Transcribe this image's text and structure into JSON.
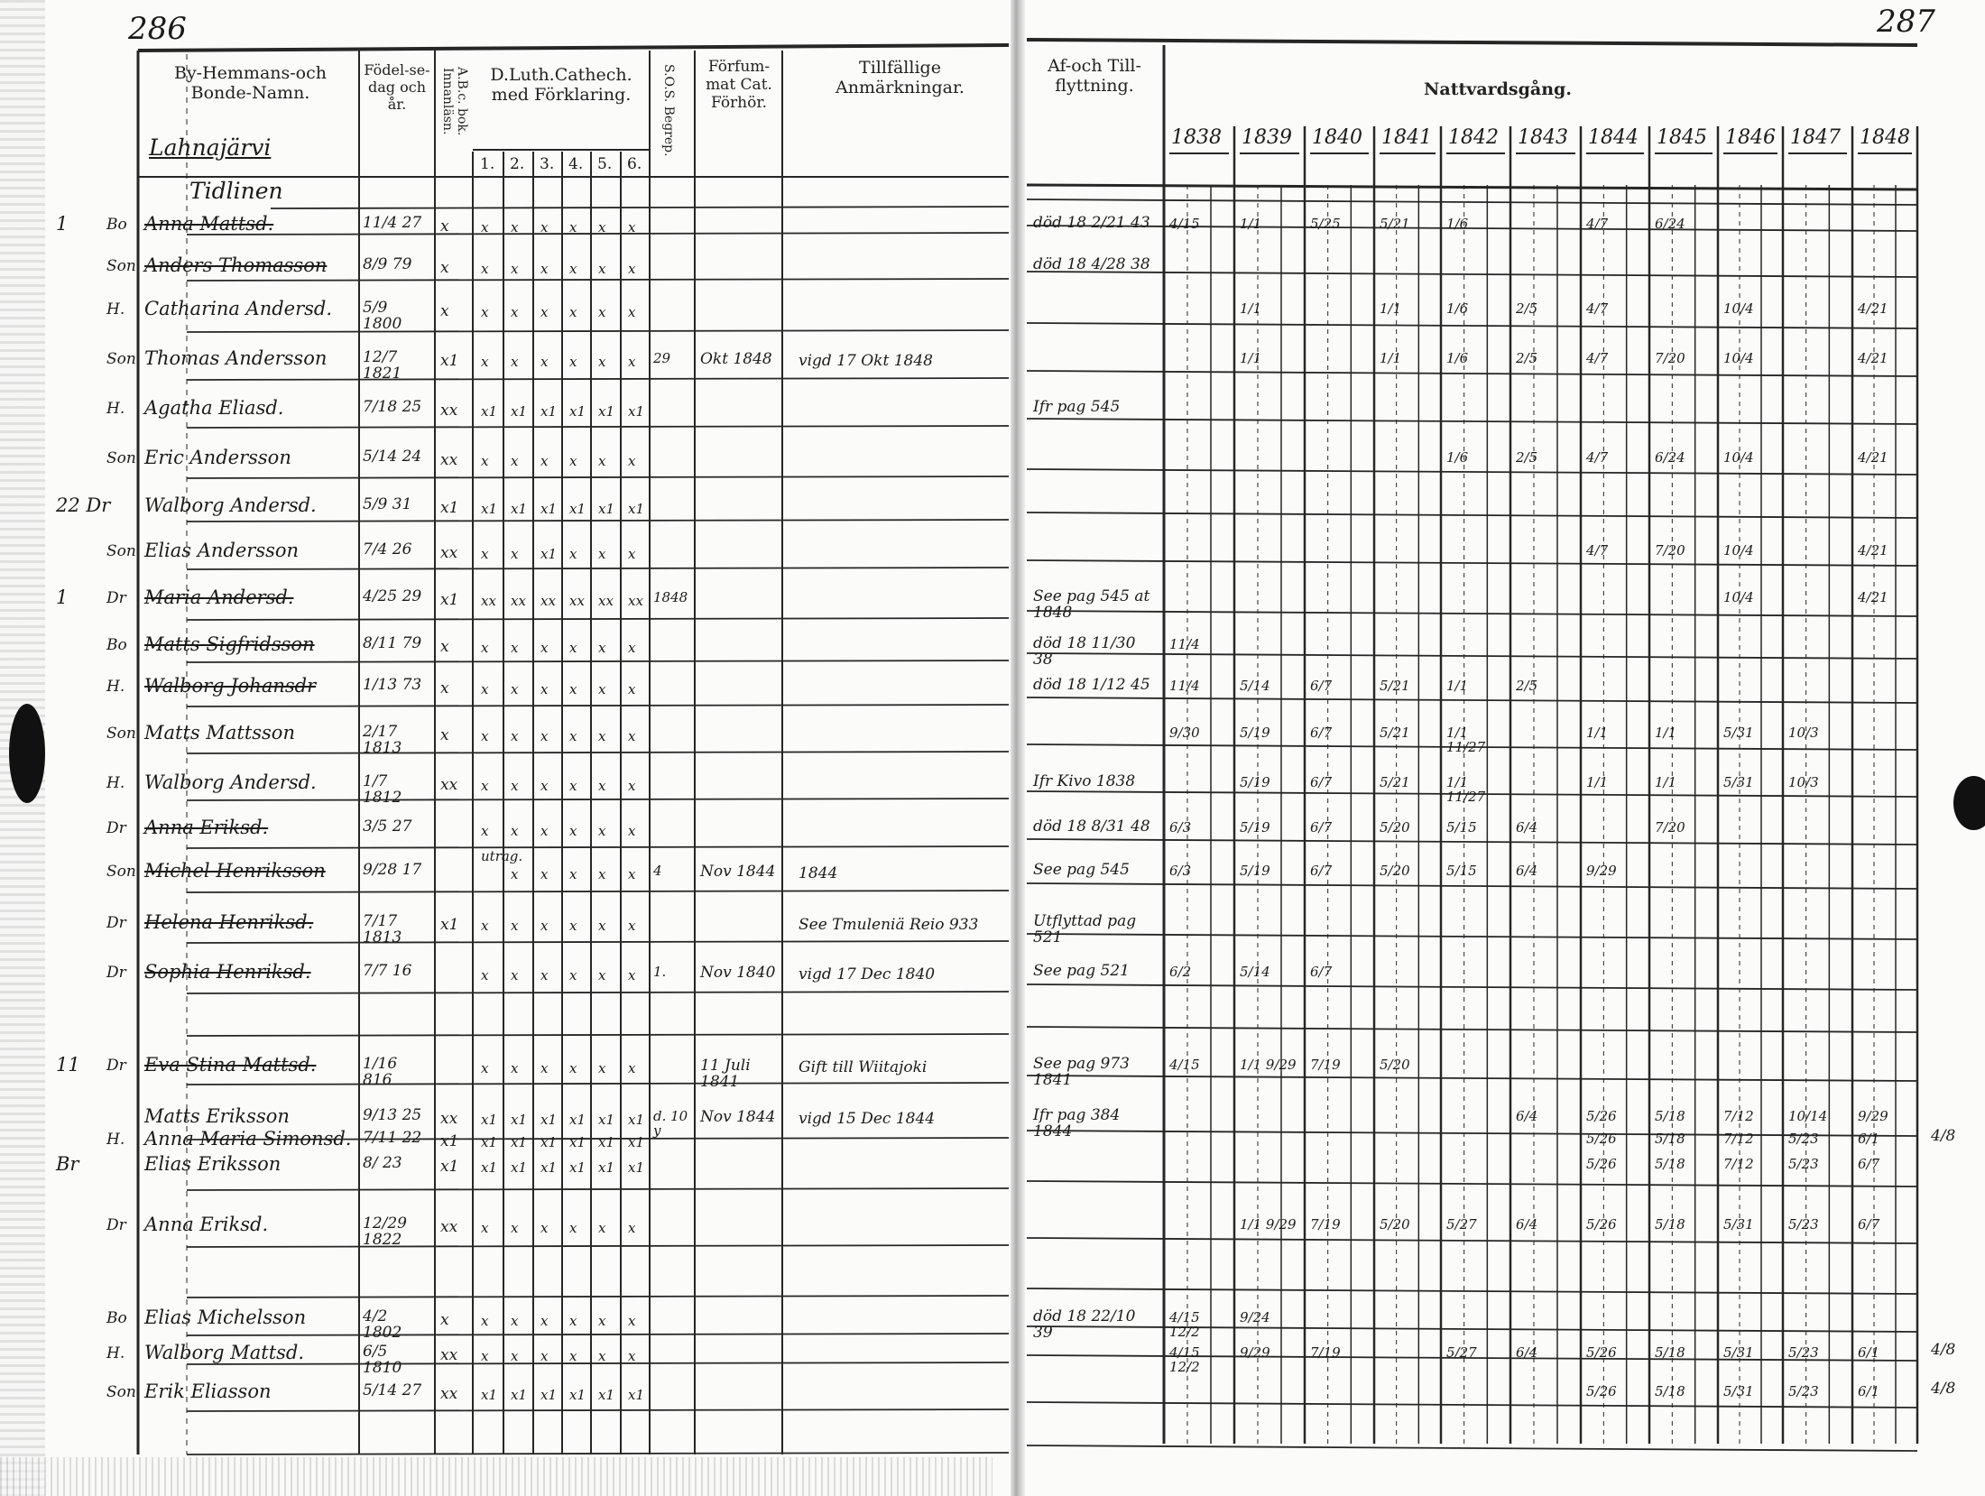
{
  "pages": {
    "left_number": "286",
    "right_number": "287"
  },
  "headers": {
    "name_col": "By-Hemmans-och Bonde-Namn.",
    "birth_col": "Födel-se-dag och år.",
    "abc_col": "A.B.c. bok. Innanläsn.",
    "catechism_col": "D.Luth.Cathech. med Förklaring.",
    "catechism_subcolumns": [
      "1.",
      "2.",
      "3.",
      "4.",
      "5.",
      "6."
    ],
    "sos_col": "S.O.S. Begrep.",
    "missed_col": "Förfum-mat Cat. Förhör.",
    "remarks_col": "Tillfällige Anmärkningar.",
    "moving_col": "Af-och Till-flyttning.",
    "communion_col": "Nattvardsgång.",
    "years": [
      "1838",
      "1839",
      "1840",
      "1841",
      "1842",
      "1843",
      "1844",
      "1845",
      "1846",
      "1847",
      "1848"
    ]
  },
  "village": "Lahnajärvi",
  "farm": "Tidlinen",
  "rows": [
    {
      "margin": "1",
      "rel": "Bo",
      "name": "Anna Mattsd.",
      "struck": true,
      "birth": "11/4 27",
      "abc": "x",
      "cat": [
        "x",
        "x",
        "x",
        "x",
        "x",
        "x"
      ],
      "sos": "",
      "missed": "",
      "remark": "",
      "move": "död 18 2/21 43",
      "communion": {
        "1838": "4/15",
        "1839": "1/1",
        "1840": "5/25",
        "1841": "5/21",
        "1842": "1/6",
        "1844": "4/7",
        "1845": "6/24"
      },
      "right": ""
    },
    {
      "margin": "",
      "rel": "Son",
      "name": "Anders Thomasson",
      "struck": true,
      "birth": "8/9 79",
      "abc": "x",
      "cat": [
        "x",
        "x",
        "x",
        "x",
        "x",
        "x"
      ],
      "sos": "",
      "missed": "",
      "remark": "",
      "move": "död 18 4/28 38",
      "communion": {},
      "right": ""
    },
    {
      "margin": "",
      "rel": "H.",
      "name": "Catharina Andersd.",
      "struck": false,
      "birth": "5/9 1800",
      "abc": "x",
      "cat": [
        "x",
        "x",
        "x",
        "x",
        "x",
        "x"
      ],
      "sos": "",
      "missed": "",
      "remark": "",
      "move": "",
      "communion": {
        "1839": "1/1",
        "1841": "1/1",
        "1842": "1/6",
        "1843": "2/5",
        "1844": "4/7",
        "1846": "10/4",
        "1848": "4/21"
      },
      "right": ""
    },
    {
      "margin": "",
      "rel": "Son",
      "name": "Thomas Andersson",
      "struck": false,
      "birth": "12/7 1821",
      "abc": "x1",
      "cat": [
        "x",
        "x",
        "x",
        "x",
        "x",
        "x"
      ],
      "sos": "29",
      "missed": "Okt 1848",
      "remark": "vigd 17 Okt 1848",
      "move": "",
      "communion": {
        "1839": "1/1",
        "1841": "1/1",
        "1842": "1/6",
        "1843": "2/5",
        "1844": "4/7",
        "1845": "7/20",
        "1846": "10/4",
        "1848": "4/21"
      },
      "right": ""
    },
    {
      "margin": "",
      "rel": "H.",
      "name": "Agatha Eliasd.",
      "struck": false,
      "birth": "7/18 25",
      "abc": "xx",
      "cat": [
        "x1",
        "x1",
        "x1",
        "x1",
        "x1",
        "x1"
      ],
      "sos": "",
      "missed": "",
      "remark": "",
      "move": "Ifr pag 545",
      "communion": {},
      "right": ""
    },
    {
      "margin": "",
      "rel": "Son",
      "name": "Eric Andersson",
      "struck": false,
      "birth": "5/14 24",
      "abc": "xx",
      "cat": [
        "x",
        "x",
        "x",
        "x",
        "x",
        "x"
      ],
      "sos": "",
      "missed": "",
      "remark": "",
      "move": "",
      "communion": {
        "1842": "1/6",
        "1843": "2/5",
        "1844": "4/7",
        "1845": "6/24",
        "1846": "10/4",
        "1848": "4/21"
      },
      "right": ""
    },
    {
      "margin": "22 Dr",
      "rel": "",
      "name": "Walborg Andersd.",
      "struck": false,
      "birth": "5/9 31",
      "abc": "x1",
      "cat": [
        "x1",
        "x1",
        "x1",
        "x1",
        "x1",
        "x1"
      ],
      "sos": "",
      "missed": "",
      "remark": "",
      "move": "",
      "communion": {},
      "right": ""
    },
    {
      "margin": "",
      "rel": "Son",
      "name": "Elias Andersson",
      "struck": false,
      "birth": "7/4 26",
      "abc": "xx",
      "cat": [
        "x",
        "x",
        "x1",
        "x",
        "x",
        "x"
      ],
      "sos": "",
      "missed": "",
      "remark": "",
      "move": "",
      "communion": {
        "1844": "4/7",
        "1845": "7/20",
        "1846": "10/4",
        "1848": "4/21"
      },
      "right": ""
    },
    {
      "margin": "1",
      "rel": "Dr",
      "name": "Maria Andersd.",
      "struck": true,
      "birth": "4/25 29",
      "abc": "x1",
      "cat": [
        "xx",
        "xx",
        "xx",
        "xx",
        "xx",
        "xx"
      ],
      "sos": "1848",
      "missed": "",
      "remark": "",
      "move": "See pag 545 at 1848",
      "communion": {
        "1846": "10/4",
        "1848": "4/21"
      },
      "right": ""
    },
    {
      "margin": "",
      "rel": "Bo",
      "name": "Matts Sigfridsson",
      "struck": true,
      "birth": "8/11 79",
      "abc": "x",
      "cat": [
        "x",
        "x",
        "x",
        "x",
        "x",
        "x"
      ],
      "sos": "",
      "missed": "",
      "remark": "",
      "move": "död 18 11/30 38",
      "communion": {
        "1838": "11/4"
      },
      "right": ""
    },
    {
      "margin": "",
      "rel": "H.",
      "name": "Walborg Johansdr",
      "struck": true,
      "birth": "1/13 73",
      "abc": "x",
      "cat": [
        "x",
        "x",
        "x",
        "x",
        "x",
        "x"
      ],
      "sos": "",
      "missed": "",
      "remark": "",
      "move": "död 18 1/12 45",
      "communion": {
        "1838": "11/4",
        "1839": "5/14",
        "1840": "6/7",
        "1841": "5/21",
        "1842": "1/1",
        "1843": "2/5"
      },
      "right": ""
    },
    {
      "margin": "",
      "rel": "Son",
      "name": "Matts Mattsson",
      "struck": false,
      "birth": "2/17 1813",
      "abc": "x",
      "cat": [
        "x",
        "x",
        "x",
        "x",
        "x",
        "x"
      ],
      "sos": "",
      "missed": "",
      "remark": "",
      "move": "",
      "communion": {
        "1838": "9/30",
        "1839": "5/19",
        "1840": "6/7",
        "1841": "5/21",
        "1842": "1/1 11/27",
        "1844": "1/1",
        "1845": "1/1",
        "1846": "5/31",
        "1847": "10/3"
      },
      "right": ""
    },
    {
      "margin": "",
      "rel": "H.",
      "name": "Walborg Andersd.",
      "struck": false,
      "birth": "1/7 1812",
      "abc": "xx",
      "cat": [
        "x",
        "x",
        "x",
        "x",
        "x",
        "x"
      ],
      "sos": "",
      "missed": "",
      "remark": "",
      "move": "Ifr Kivo 1838",
      "communion": {
        "1839": "5/19",
        "1840": "6/7",
        "1841": "5/21",
        "1842": "1/1 11/27",
        "1844": "1/1",
        "1845": "1/1",
        "1846": "5/31",
        "1847": "10/3"
      },
      "right": ""
    },
    {
      "margin": "",
      "rel": "Dr",
      "name": "Anna Eriksd.",
      "struck": true,
      "birth": "3/5 27",
      "abc": "",
      "cat": [
        "x",
        "x",
        "x",
        "x",
        "x",
        "x"
      ],
      "sos": "",
      "missed": "",
      "remark": "",
      "move": "död 18 8/31 48",
      "communion": {
        "1838": "6/3",
        "1839": "5/19",
        "1840": "6/7",
        "1841": "5/20",
        "1842": "5/15",
        "1843": "6/4",
        "1845": "7/20"
      },
      "right": ""
    },
    {
      "margin": "",
      "rel": "Son",
      "name": "Michel Henriksson",
      "struck": true,
      "birth": "9/28 17",
      "abc": "",
      "cat": [
        "utrag.",
        "x",
        "x",
        "x",
        "x",
        "x"
      ],
      "sos": "4",
      "missed": "Nov 1844",
      "remark": "1844",
      "move": "See pag 545",
      "communion": {
        "1838": "6/3",
        "1839": "5/19",
        "1840": "6/7",
        "1841": "5/20",
        "1842": "5/15",
        "1843": "6/4",
        "1844": "9/29"
      },
      "right": ""
    },
    {
      "margin": "",
      "rel": "Dr",
      "name": "Helena Henriksd.",
      "struck": true,
      "birth": "7/17 1813",
      "abc": "x1",
      "cat": [
        "x",
        "x",
        "x",
        "x",
        "x",
        "x"
      ],
      "sos": "",
      "missed": "",
      "remark": "See Tmuleniä Reio 933",
      "move": "Utflyttad pag 521",
      "communion": {},
      "right": ""
    },
    {
      "margin": "",
      "rel": "Dr",
      "name": "Sophia Henriksd.",
      "struck": true,
      "birth": "7/7 16",
      "abc": "",
      "cat": [
        "x",
        "x",
        "x",
        "x",
        "x",
        "x"
      ],
      "sos": "1.",
      "missed": "Nov 1840",
      "remark": "vigd 17 Dec 1840",
      "move": "See pag 521",
      "communion": {
        "1838": "6/2",
        "1839": "5/14",
        "1840": "6/7"
      },
      "right": ""
    },
    {
      "margin": "11",
      "rel": "Dr",
      "name": "Eva Stina Mattsd.",
      "struck": true,
      "birth": "1/16 816",
      "abc": "",
      "cat": [
        "x",
        "x",
        "x",
        "x",
        "x",
        "x"
      ],
      "sos": "",
      "missed": "11 Juli 1841",
      "remark": "Gift till Wiitajoki",
      "move": "See pag 973 1841",
      "communion": {
        "1838": "4/15",
        "1839": "1/1 9/29",
        "1840": "7/19",
        "1841": "5/20"
      },
      "right": ""
    },
    {
      "margin": "",
      "rel": "",
      "name": "Matts Eriksson",
      "struck": false,
      "birth": "9/13 25",
      "abc": "xx",
      "cat": [
        "x1",
        "x1",
        "x1",
        "x1",
        "x1",
        "x1"
      ],
      "sos": "d. 10 y",
      "missed": "Nov 1844",
      "remark": "vigd 15 Dec 1844",
      "move": "Ifr pag 384 1844",
      "communion": {
        "1843": "6/4",
        "1844": "5/26",
        "1845": "5/18",
        "1846": "7/12",
        "1847": "10/14",
        "1848": "9/29"
      },
      "right": ""
    },
    {
      "margin": "",
      "rel": "H.",
      "name": "Anna Maria Simonsd.",
      "struck": false,
      "birth": "7/11 22",
      "abc": "x1",
      "cat": [
        "x1",
        "x1",
        "x1",
        "x1",
        "x1",
        "x1"
      ],
      "sos": "",
      "missed": "",
      "remark": "",
      "move": "",
      "communion": {
        "1844": "5/26",
        "1845": "5/18",
        "1846": "7/12",
        "1847": "5/23",
        "1848": "6/1"
      },
      "right": "4/8"
    },
    {
      "margin": "Br",
      "rel": "",
      "name": "Elias Eriksson",
      "struck": false,
      "birth": "8/ 23",
      "abc": "x1",
      "cat": [
        "x1",
        "x1",
        "x1",
        "x1",
        "x1",
        "x1"
      ],
      "sos": "",
      "missed": "",
      "remark": "",
      "move": "",
      "communion": {
        "1844": "5/26",
        "1845": "5/18",
        "1846": "7/12",
        "1847": "5/23",
        "1848": "6/7"
      },
      "right": ""
    },
    {
      "margin": "",
      "rel": "Dr",
      "name": "Anna Eriksd.",
      "struck": false,
      "birth": "12/29 1822",
      "abc": "xx",
      "cat": [
        "x",
        "x",
        "x",
        "x",
        "x",
        "x"
      ],
      "sos": "",
      "missed": "",
      "remark": "",
      "move": "",
      "communion": {
        "1839": "1/1 9/29",
        "1840": "7/19",
        "1841": "5/20",
        "1842": "5/27",
        "1843": "6/4",
        "1844": "5/26",
        "1845": "5/18",
        "1846": "5/31",
        "1847": "5/23",
        "1848": "6/7"
      },
      "right": ""
    },
    {
      "margin": "",
      "rel": "Bo",
      "name": "Elias Michelsson",
      "struck": false,
      "birth": "4/2 1802",
      "abc": "x",
      "cat": [
        "x",
        "x",
        "x",
        "x",
        "x",
        "x"
      ],
      "sos": "",
      "missed": "",
      "remark": "",
      "move": "död 18 22/10 39",
      "communion": {
        "1838": "4/15 12/2",
        "1839": "9/24"
      },
      "right": ""
    },
    {
      "margin": "",
      "rel": "H.",
      "name": "Walborg Mattsd.",
      "struck": false,
      "birth": "6/5 1810",
      "abc": "xx",
      "cat": [
        "x",
        "x",
        "x",
        "x",
        "x",
        "x"
      ],
      "sos": "",
      "missed": "",
      "remark": "",
      "move": "",
      "communion": {
        "1838": "4/15 12/2",
        "1839": "9/29",
        "1840": "7/19",
        "1842": "5/27",
        "1843": "6/4",
        "1844": "5/26",
        "1845": "5/18",
        "1846": "5/31",
        "1847": "5/23",
        "1848": "6/1"
      },
      "right": "4/8"
    },
    {
      "margin": "",
      "rel": "Son",
      "name": "Erik Eliasson",
      "struck": false,
      "birth": "5/14 27",
      "abc": "xx",
      "cat": [
        "x1",
        "x1",
        "x1",
        "x1",
        "x1",
        "x1"
      ],
      "sos": "",
      "missed": "",
      "remark": "",
      "move": "",
      "communion": {
        "1844": "5/26",
        "1845": "5/18",
        "1846": "5/31",
        "1847": "5/23",
        "1848": "6/1"
      },
      "right": "4/8"
    }
  ]
}
